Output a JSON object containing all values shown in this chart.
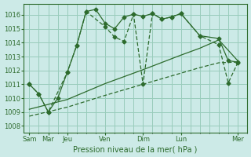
{
  "bg_color": "#cceae7",
  "grid_color": "#99ccbb",
  "line_color": "#2d6b2d",
  "xlabel": "Pression niveau de la mer( hPa )",
  "xlabel_color": "#2d6b2d",
  "tick_color": "#2d6b2d",
  "ylim": [
    1007.5,
    1016.8
  ],
  "yticks": [
    1008,
    1009,
    1010,
    1011,
    1012,
    1013,
    1014,
    1015,
    1016
  ],
  "major_xtick_labels": [
    "Sam",
    "Mar",
    "Jeu",
    "Ven",
    "Dim",
    "Lun",
    "Mer"
  ],
  "major_xtick_pos": [
    0,
    1,
    2,
    4,
    6,
    8,
    11
  ],
  "n_pts": 22,
  "line1_x": [
    0,
    0.5,
    1,
    1.5,
    2,
    2.5,
    3,
    3.5,
    4,
    4.5,
    5,
    5.5,
    6,
    6.5,
    7,
    7.5,
    8,
    9,
    10,
    10.5,
    11
  ],
  "line1_y": [
    1011.0,
    1010.3,
    1009.0,
    1010.0,
    1011.85,
    1013.8,
    1016.25,
    1016.4,
    1015.4,
    1015.0,
    1015.85,
    1016.05,
    1015.9,
    1016.1,
    1015.7,
    1015.85,
    1016.1,
    1014.5,
    1014.3,
    1012.7,
    1012.6
  ],
  "line2_x": [
    0,
    0.5,
    1,
    2,
    2.5,
    3,
    4,
    4.5,
    5,
    5.5,
    6,
    6.5,
    7,
    7.5,
    8,
    9,
    10,
    10.5,
    11
  ],
  "line2_y": [
    1011.0,
    1010.3,
    1009.0,
    1011.85,
    1013.8,
    1016.25,
    1015.15,
    1014.4,
    1014.1,
    1016.05,
    1011.0,
    1016.1,
    1015.7,
    1015.85,
    1016.1,
    1014.5,
    1013.85,
    1011.1,
    1012.55
  ],
  "line3_x": [
    0,
    2,
    4,
    6,
    8,
    9,
    10,
    11
  ],
  "line3_y": [
    1009.2,
    1009.9,
    1011.05,
    1012.05,
    1013.1,
    1013.6,
    1014.2,
    1012.7
  ],
  "line4_x": [
    0,
    2,
    4,
    6,
    8,
    9,
    10,
    11
  ],
  "line4_y": [
    1008.7,
    1009.35,
    1010.2,
    1011.0,
    1011.8,
    1012.2,
    1012.55,
    1012.6
  ]
}
